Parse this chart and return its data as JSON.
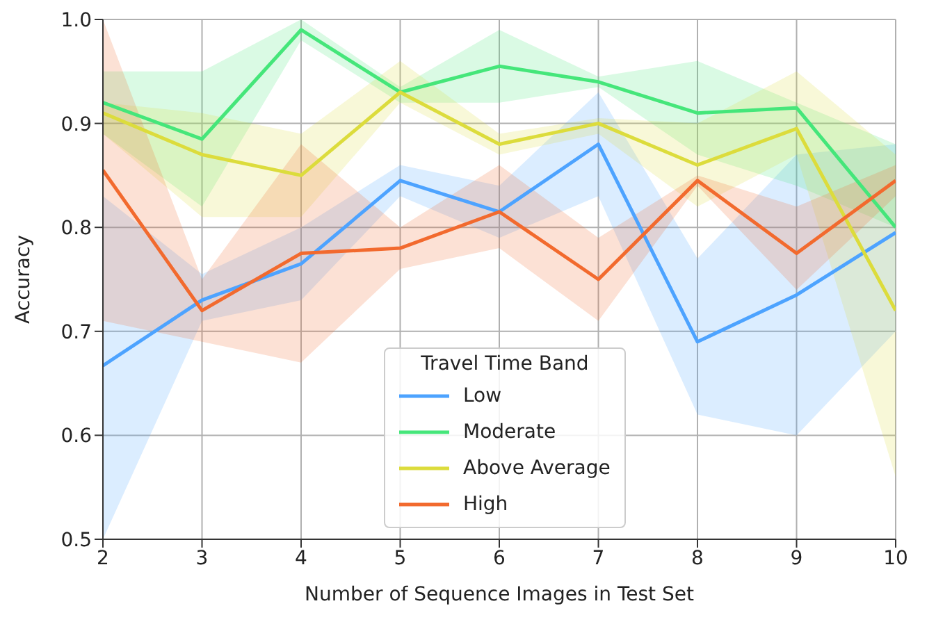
{
  "chart_data": {
    "type": "line",
    "xlabel": "Number of Sequence Images in Test Set",
    "ylabel": "Accuracy",
    "legend_title": "Travel Time Band",
    "legend": "bottom",
    "grid": true,
    "x": [
      2,
      3,
      4,
      5,
      6,
      7,
      8,
      9,
      10
    ],
    "xlim": [
      2,
      10
    ],
    "xticks": [
      2,
      3,
      4,
      5,
      6,
      7,
      8,
      9,
      10
    ],
    "ylim": [
      0.5,
      1.0
    ],
    "yticks": [
      0.5,
      0.6,
      0.7,
      0.8,
      0.9,
      {
        "value": 1.0,
        "label": "1.0"
      }
    ],
    "series": [
      {
        "name": "Low",
        "color": "#4da3ff",
        "values": [
          0.667,
          0.73,
          0.765,
          0.845,
          0.815,
          0.88,
          0.69,
          0.735,
          0.795
        ],
        "lower": [
          0.5,
          0.71,
          0.73,
          0.83,
          0.79,
          0.83,
          0.62,
          0.6,
          0.7
        ],
        "upper": [
          0.83,
          0.755,
          0.8,
          0.86,
          0.84,
          0.93,
          0.77,
          0.87,
          0.88
        ]
      },
      {
        "name": "Moderate",
        "color": "#45e67a",
        "values": [
          0.92,
          0.885,
          0.99,
          0.93,
          0.955,
          0.94,
          0.91,
          0.915,
          0.8
        ],
        "lower": [
          0.89,
          0.82,
          0.98,
          0.92,
          0.92,
          0.935,
          0.87,
          0.84,
          0.8
        ],
        "upper": [
          0.95,
          0.95,
          1.0,
          0.935,
          0.99,
          0.945,
          0.96,
          0.92,
          0.88
        ]
      },
      {
        "name": "Above Average",
        "color": "#dcdc3c",
        "values": [
          0.91,
          0.87,
          0.85,
          0.93,
          0.88,
          0.9,
          0.86,
          0.895,
          0.72
        ],
        "lower": [
          0.89,
          0.81,
          0.81,
          0.92,
          0.87,
          0.89,
          0.82,
          0.87,
          0.56
        ],
        "upper": [
          0.92,
          0.91,
          0.89,
          0.96,
          0.89,
          0.905,
          0.9,
          0.95,
          0.87
        ]
      },
      {
        "name": "High",
        "color": "#f26a2e",
        "values": [
          0.855,
          0.72,
          0.775,
          0.78,
          0.815,
          0.75,
          0.845,
          0.775,
          0.845
        ],
        "lower": [
          0.71,
          0.69,
          0.67,
          0.76,
          0.78,
          0.71,
          0.84,
          0.74,
          0.83
        ],
        "upper": [
          1.0,
          0.75,
          0.88,
          0.8,
          0.86,
          0.79,
          0.85,
          0.82,
          0.86
        ]
      }
    ]
  }
}
